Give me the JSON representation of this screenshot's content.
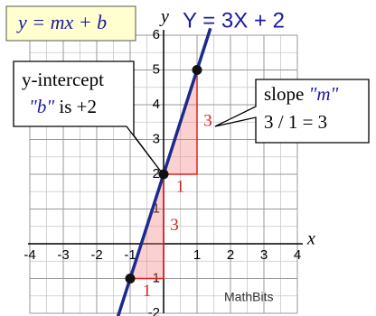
{
  "chart_data": {
    "type": "line",
    "title": "Y = 3X + 2",
    "x_label": "x",
    "y_label": "y",
    "xlim": [
      -4,
      4
    ],
    "ylim": [
      -2,
      6
    ],
    "xticks": [
      -4,
      -3,
      -2,
      -1,
      1,
      2,
      3,
      4
    ],
    "yticks": [
      -2,
      -1,
      1,
      2,
      3,
      4,
      5,
      6
    ],
    "grid": true,
    "grid_step": 0.5,
    "series": [
      {
        "color": "#1c2a8c",
        "x": [
          -1.4,
          1.4
        ],
        "values": [
          -2.2,
          6.2
        ]
      }
    ],
    "points": {
      "color": "#111111",
      "x": [
        -1,
        0,
        1
      ],
      "values": [
        -1,
        2,
        5
      ]
    },
    "triangles": [
      {
        "x": [
          0,
          1,
          1
        ],
        "values": [
          2,
          2,
          5
        ],
        "run_label": "1",
        "rise_label": "3"
      },
      {
        "x": [
          -1,
          0,
          0
        ],
        "values": [
          -1,
          -1,
          2
        ],
        "run_label": "1",
        "rise_label": "3"
      }
    ],
    "annotations": {
      "formula": "y = mx + b",
      "intercept_line1": "y-intercept",
      "intercept_b": "\"b\"",
      "intercept_rest": " is +2",
      "slope_word": "slope ",
      "slope_m": "\"m\"",
      "slope_calc": "3 / 1 = 3",
      "watermark": "MathBits"
    }
  }
}
